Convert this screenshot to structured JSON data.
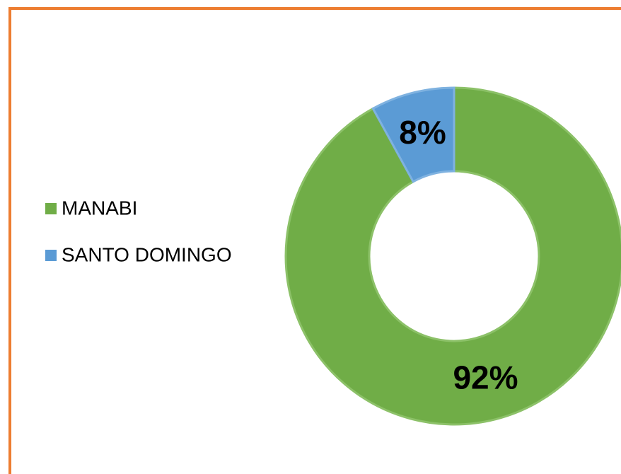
{
  "chart_data": {
    "type": "donut",
    "categories": [
      "MANABI",
      "SANTO DOMINGO"
    ],
    "values": [
      92,
      8
    ],
    "value_labels": [
      "92%",
      "8%"
    ],
    "colors": [
      "#70ad47",
      "#5b9bd5"
    ],
    "legend": "left"
  }
}
